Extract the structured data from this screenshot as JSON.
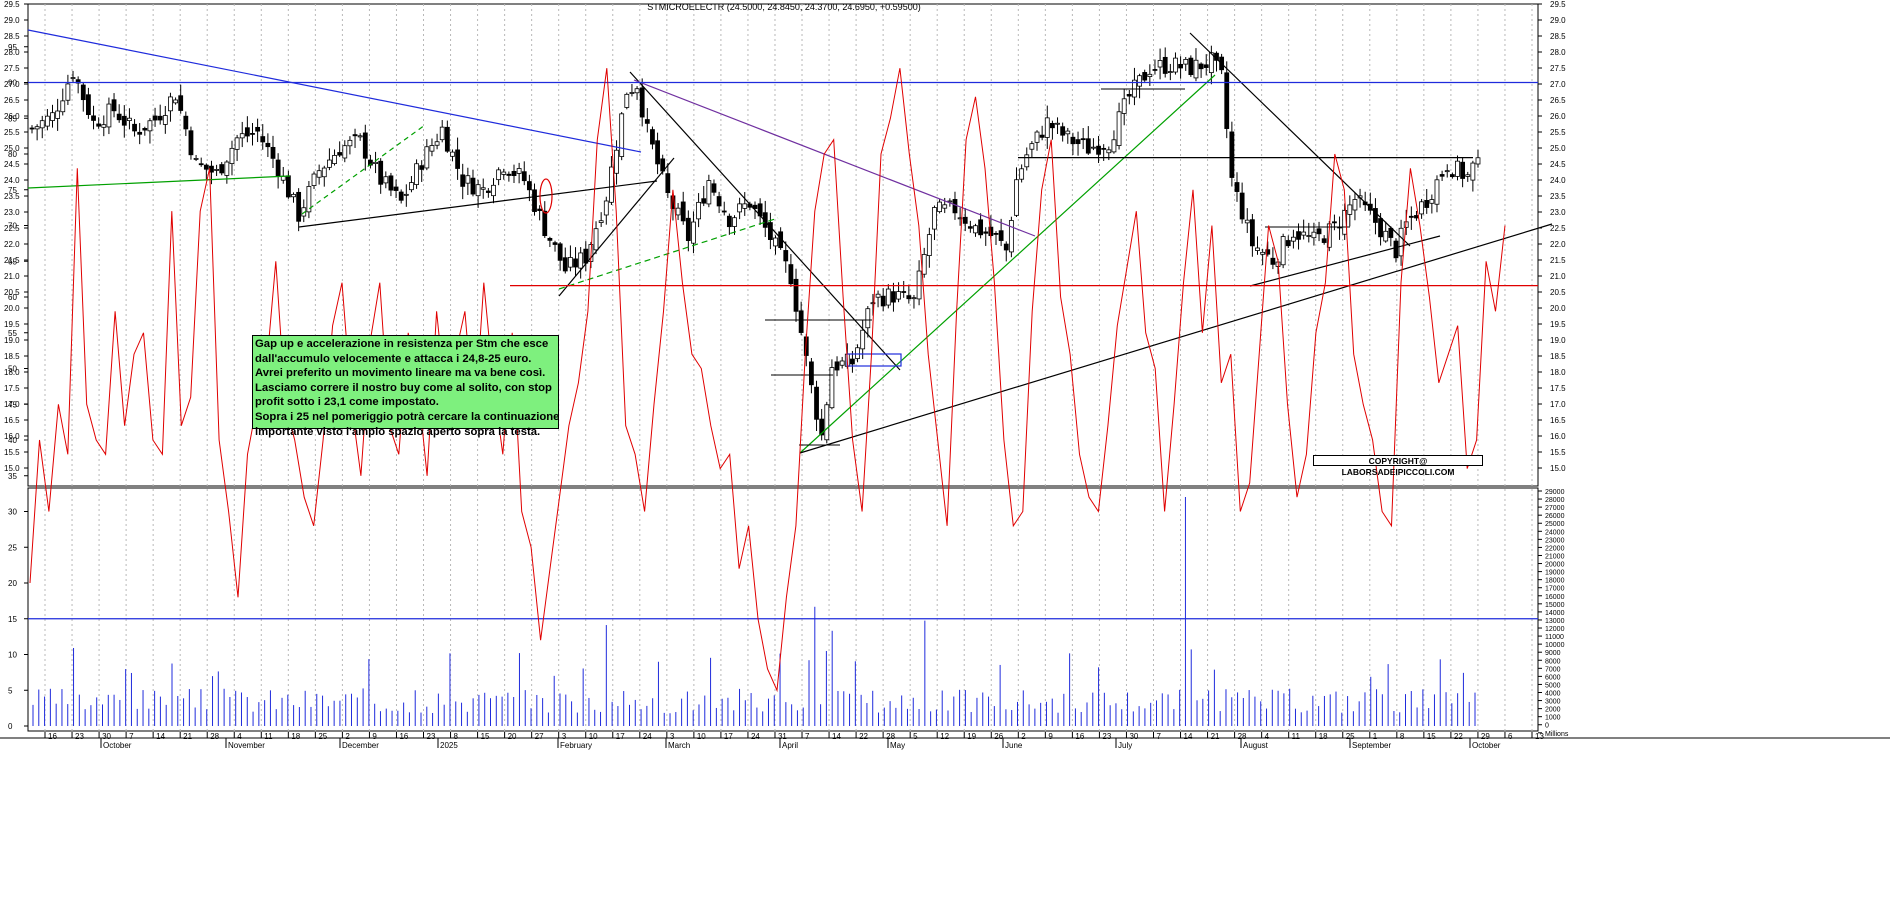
{
  "header": {
    "title": "STMICROELECTR (24.5000, 24.8450, 24.3700, 24.6950, +0.59500)"
  },
  "annotation": {
    "lines": [
      "Gap up e accelerazione in resistenza per Stm che esce",
      "dall'accumulo velocemente e attacca i 24,8-25 euro.",
      "Avrei preferito un movimento lineare ma va bene così.",
      "Lasciamo correre il nostro buy come al solito, con stop",
      "profit sotto i 23,1 come impostato.",
      "Sopra i 25 nel pomeriggio potrà cercare la continuazione",
      "importante visto l'ampio spazio aperto sopra la testa."
    ]
  },
  "copyright": "COPYRIGHT@ LABORSADEIPICCOLI.COM",
  "colors": {
    "trend_blue": "#1f2bdc",
    "trend_green": "#00a000",
    "trend_purple": "#7030a0",
    "support_red": "#e00000",
    "osc": "#e00000",
    "volume": "#1f2bdc"
  },
  "chart_data": [
    {
      "type": "candlestick",
      "title": "STMICROELECTR (24.5000, 24.8450, 24.3700, 24.6950, +0.59500)",
      "ylim": [
        14.5,
        29.5
      ],
      "y_ticks": [
        "29.5",
        "29.0",
        "28.5",
        "28.0",
        "27.5",
        "27.0",
        "26.5",
        "26.0",
        "25.5",
        "25.0",
        "24.5",
        "24.0",
        "23.5",
        "23.0",
        "22.5",
        "22.0",
        "21.5",
        "21.0",
        "20.5",
        "20.0",
        "19.5",
        "19.0",
        "18.5",
        "18.0",
        "17.5",
        "17.0",
        "16.5",
        "16.0",
        "15.5",
        "15.0"
      ],
      "last": {
        "open": 24.5,
        "high": 24.845,
        "low": 24.37,
        "close": 24.695,
        "change": 0.595
      },
      "levels": [
        {
          "name": "support",
          "value": 20.7
        },
        {
          "name": "resistance",
          "value": 24.7
        }
      ],
      "path_points": [
        [
          0,
          25.6
        ],
        [
          4,
          26.0
        ],
        [
          8,
          27.4
        ],
        [
          12,
          25.8
        ],
        [
          16,
          26.2
        ],
        [
          20,
          25.5
        ],
        [
          24,
          25.9
        ],
        [
          28,
          26.7
        ],
        [
          32,
          24.5
        ],
        [
          36,
          24.2
        ],
        [
          40,
          25.3
        ],
        [
          44,
          25.5
        ],
        [
          48,
          24.4
        ],
        [
          52,
          22.9
        ],
        [
          56,
          24.3
        ],
        [
          60,
          25.0
        ],
        [
          64,
          25.2
        ],
        [
          68,
          24.0
        ],
        [
          72,
          23.3
        ],
        [
          76,
          24.6
        ],
        [
          80,
          25.6
        ],
        [
          84,
          24.0
        ],
        [
          88,
          23.7
        ],
        [
          92,
          24.5
        ],
        [
          96,
          24.0
        ],
        [
          100,
          22.5
        ],
        [
          104,
          21.2
        ],
        [
          108,
          21.6
        ],
        [
          112,
          23.5
        ],
        [
          116,
          26.8
        ],
        [
          118,
          27.0
        ],
        [
          120,
          25.5
        ],
        [
          124,
          23.5
        ],
        [
          128,
          22.2
        ],
        [
          132,
          24.0
        ],
        [
          136,
          22.8
        ],
        [
          140,
          23.3
        ],
        [
          144,
          22.2
        ],
        [
          148,
          21.0
        ],
        [
          152,
          17.5
        ],
        [
          154,
          16.0
        ],
        [
          156,
          18.2
        ],
        [
          160,
          18.3
        ],
        [
          164,
          20.3
        ],
        [
          168,
          20.4
        ],
        [
          172,
          20.2
        ],
        [
          176,
          23.0
        ],
        [
          180,
          23.1
        ],
        [
          184,
          22.5
        ],
        [
          188,
          22.2
        ],
        [
          190,
          21.8
        ],
        [
          192,
          24.0
        ],
        [
          194,
          24.8
        ],
        [
          198,
          25.8
        ],
        [
          202,
          25.3
        ],
        [
          206,
          25.0
        ],
        [
          210,
          25.2
        ],
        [
          214,
          26.6
        ],
        [
          218,
          27.5
        ],
        [
          222,
          27.6
        ],
        [
          226,
          27.5
        ],
        [
          230,
          27.7
        ],
        [
          232,
          27.2
        ],
        [
          234,
          24.0
        ],
        [
          238,
          22.0
        ],
        [
          242,
          21.5
        ],
        [
          246,
          22.4
        ],
        [
          250,
          22.1
        ],
        [
          254,
          22.5
        ],
        [
          258,
          23.4
        ],
        [
          262,
          22.7
        ],
        [
          266,
          21.8
        ],
        [
          268,
          22.6
        ],
        [
          272,
          23.4
        ],
        [
          276,
          24.5
        ],
        [
          280,
          24.1
        ],
        [
          282,
          24.7
        ]
      ]
    },
    {
      "type": "line",
      "name": "oscillator",
      "ylim": [
        -2,
        98
      ],
      "y_ticks": [
        "95",
        "90",
        "85",
        "80",
        "75",
        "70",
        "65",
        "60",
        "55",
        "50",
        "45",
        "40",
        "35",
        "30",
        "25",
        "20",
        "15",
        "10",
        "5",
        "0"
      ],
      "levels": [
        90,
        15
      ],
      "values": [
        20,
        40,
        30,
        45,
        38,
        78,
        45,
        40,
        38,
        58,
        42,
        52,
        55,
        40,
        38,
        72,
        42,
        46,
        72,
        78,
        40,
        30,
        18,
        38,
        45,
        50,
        65,
        45,
        40,
        32,
        28,
        40,
        56,
        62,
        45,
        35,
        54,
        62,
        42,
        38,
        55,
        48,
        35,
        58,
        45,
        52,
        58,
        42,
        62,
        48,
        38,
        55,
        30,
        25,
        12,
        22,
        32,
        42,
        48,
        58,
        82,
        92,
        72,
        42,
        38,
        30,
        45,
        58,
        75,
        62,
        52,
        50,
        42,
        36,
        38,
        22,
        28,
        15,
        8,
        5,
        18,
        28,
        52,
        72,
        80,
        82,
        60,
        40,
        30,
        52,
        80,
        85,
        92,
        80,
        70,
        52,
        40,
        28,
        58,
        82,
        88,
        78,
        62,
        40,
        28,
        30,
        58,
        75,
        82,
        60,
        52,
        38,
        32,
        30,
        42,
        56,
        64,
        72,
        55,
        50,
        30,
        45,
        62,
        75,
        55,
        70,
        48,
        52,
        30,
        34,
        52,
        70,
        65,
        45,
        32,
        38,
        55,
        62,
        80,
        75,
        52,
        45,
        40,
        30,
        28,
        62,
        78,
        70,
        60,
        48,
        52,
        56,
        36,
        40,
        65,
        58,
        70
      ],
      "series_2": {
        "name": "volume",
        "y_ticks": [
          "29000",
          "28000",
          "27000",
          "26000",
          "25000",
          "24000",
          "23000",
          "22000",
          "21000",
          "20000",
          "19000",
          "18000",
          "17000",
          "16000",
          "15000",
          "14000",
          "13000",
          "12000",
          "11000",
          "10000",
          "9000",
          "8000",
          "7000",
          "6000",
          "5000",
          "4000",
          "3000",
          "2000",
          "1000",
          "0",
          "Millions"
        ]
      }
    }
  ],
  "x_axis": {
    "day_ticks": [
      "16",
      "23",
      "30",
      "7",
      "14",
      "21",
      "28",
      "4",
      "11",
      "18",
      "25",
      "2",
      "9",
      "16",
      "23",
      "8",
      "15",
      "20",
      "27",
      "3",
      "10",
      "17",
      "24",
      "3",
      "10",
      "17",
      "24",
      "31",
      "7",
      "14",
      "22",
      "28",
      "5",
      "12",
      "19",
      "26",
      "2",
      "9",
      "16",
      "23",
      "30",
      "7",
      "14",
      "21",
      "28",
      "4",
      "11",
      "18",
      "25",
      "1",
      "8",
      "15",
      "22",
      "29",
      "6",
      "13"
    ],
    "month_labels": [
      "October",
      "November",
      "December",
      "2025",
      "February",
      "March",
      "April",
      "May",
      "June",
      "July",
      "August",
      "September",
      "October"
    ]
  }
}
